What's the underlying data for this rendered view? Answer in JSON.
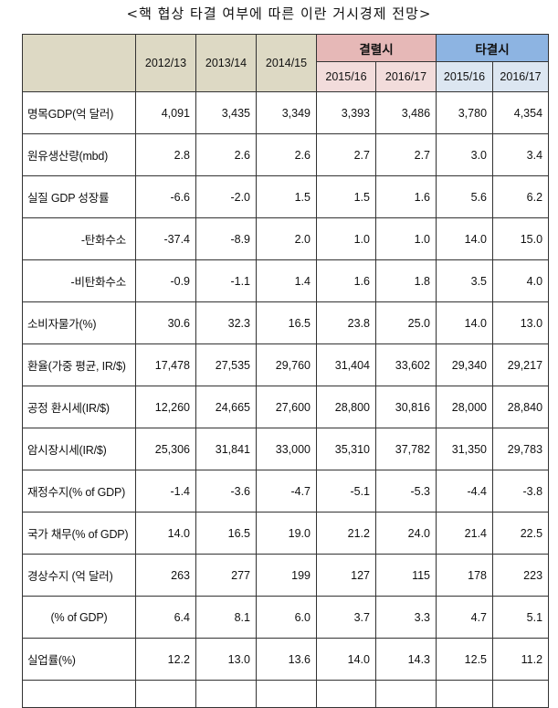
{
  "title": "<핵 협상 타결 여부에 따른 이란 거시경제 전망>",
  "header": {
    "years": [
      "2012/13",
      "2013/14",
      "2014/15"
    ],
    "group_fail": "결렬시",
    "group_success": "타결시",
    "fail_years": [
      "2015/16",
      "2016/17"
    ],
    "success_years": [
      "2015/16",
      "2016/17"
    ]
  },
  "rows": [
    {
      "label": "명목GDP(억 달러)",
      "values": [
        "4,091",
        "3,435",
        "3,349",
        "3,393",
        "3,486",
        "3,780",
        "4,354"
      ]
    },
    {
      "label": "원유생산량(mbd)",
      "values": [
        "2.8",
        "2.6",
        "2.6",
        "2.7",
        "2.7",
        "3.0",
        "3.4"
      ]
    },
    {
      "label": "실질 GDP 성장률",
      "values": [
        "-6.6",
        "-2.0",
        "1.5",
        "1.5",
        "1.6",
        "5.6",
        "6.2"
      ]
    },
    {
      "label": "-탄화수소",
      "values": [
        "-37.4",
        "-8.9",
        "2.0",
        "1.0",
        "1.0",
        "14.0",
        "15.0"
      ]
    },
    {
      "label": "-비탄화수소",
      "values": [
        "-0.9",
        "-1.1",
        "1.4",
        "1.6",
        "1.8",
        "3.5",
        "4.0"
      ]
    },
    {
      "label": "소비자물가(%)",
      "values": [
        "30.6",
        "32.3",
        "16.5",
        "23.8",
        "25.0",
        "14.0",
        "13.0"
      ]
    },
    {
      "label": "환율(가중 평균, IR/$)",
      "values": [
        "17,478",
        "27,535",
        "29,760",
        "31,404",
        "33,602",
        "29,340",
        "29,217"
      ]
    },
    {
      "label": "공정 환시세(IR/$)",
      "values": [
        "12,260",
        "24,665",
        "27,600",
        "28,800",
        "30,816",
        "28,000",
        "28,840"
      ]
    },
    {
      "label": "암시장시세(IR/$)",
      "values": [
        "25,306",
        "31,841",
        "33,000",
        "35,310",
        "37,782",
        "31,350",
        "29,783"
      ]
    },
    {
      "label": "재정수지(% of GDP)",
      "values": [
        "-1.4",
        "-3.6",
        "-4.7",
        "-5.1",
        "-5.3",
        "-4.4",
        "-3.8"
      ]
    },
    {
      "label": "국가 채무(% of GDP)",
      "values": [
        "14.0",
        "16.5",
        "19.0",
        "21.2",
        "24.0",
        "21.4",
        "22.5"
      ]
    },
    {
      "label": "경상수지 (억 달러)",
      "values": [
        "263",
        "277",
        "199",
        "127",
        "115",
        "178",
        "223"
      ]
    },
    {
      "label": "(% of GDP)",
      "values": [
        "6.4",
        "8.1",
        "6.0",
        "3.7",
        "3.3",
        "4.7",
        "5.1"
      ]
    },
    {
      "label": "실업률(%)",
      "values": [
        "12.2",
        "13.0",
        "13.6",
        "14.0",
        "14.3",
        "12.5",
        "11.2"
      ]
    }
  ]
}
